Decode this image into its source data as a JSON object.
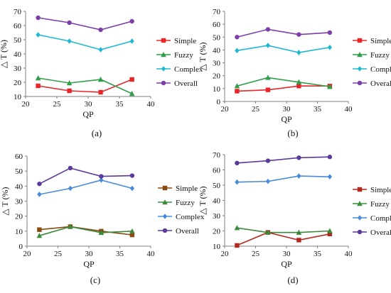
{
  "chart_data": [
    {
      "type": "line",
      "panel_label": "(a)",
      "xlabel": "QP",
      "ylabel": "△ T (%)",
      "x": [
        22,
        27,
        32,
        37
      ],
      "xlim": [
        20,
        40
      ],
      "xticks": [
        20,
        25,
        30,
        35,
        40
      ],
      "ylim": [
        10,
        70
      ],
      "yticks": [
        10,
        20,
        30,
        40,
        50,
        60,
        70
      ],
      "grid": false,
      "legend_position": "right",
      "series": [
        {
          "name": "Simple",
          "color": "#e8262a",
          "marker": "square",
          "values": [
            17.5,
            14,
            13,
            22
          ]
        },
        {
          "name": "Fuzzy",
          "color": "#2e9e4a",
          "marker": "triangle",
          "values": [
            23,
            19.5,
            22,
            12
          ]
        },
        {
          "name": "Complex",
          "color": "#1fb8d1",
          "marker": "diamond",
          "values": [
            53.5,
            49,
            43,
            49
          ]
        },
        {
          "name": "Overall",
          "color": "#7a3fa8",
          "marker": "circle",
          "values": [
            65.5,
            62,
            57,
            63
          ]
        }
      ]
    },
    {
      "type": "line",
      "panel_label": "(b)",
      "xlabel": "QP",
      "ylabel": "△ T (%)",
      "x": [
        22,
        27,
        32,
        37
      ],
      "xlim": [
        20,
        40
      ],
      "xticks": [
        20,
        25,
        30,
        35,
        40
      ],
      "ylim": [
        0,
        70
      ],
      "yticks": [
        0,
        10,
        20,
        30,
        40,
        50,
        60,
        70
      ],
      "grid": false,
      "legend_position": "right",
      "series": [
        {
          "name": "Simple",
          "color": "#e8262a",
          "marker": "square",
          "values": [
            8,
            9,
            12,
            12
          ]
        },
        {
          "name": "Fuzzy",
          "color": "#2e9e4a",
          "marker": "triangle",
          "values": [
            12,
            18.5,
            15,
            11.5
          ]
        },
        {
          "name": "Complex",
          "color": "#1fb8d1",
          "marker": "diamond",
          "values": [
            39.5,
            43.5,
            38,
            42
          ]
        },
        {
          "name": "Overall",
          "color": "#7a3fa8",
          "marker": "circle",
          "values": [
            50,
            56,
            52,
            53.5
          ]
        }
      ]
    },
    {
      "type": "line",
      "panel_label": "(c)",
      "xlabel": "QP",
      "ylabel": "△ T (%)",
      "x": [
        22,
        27,
        32,
        37
      ],
      "xlim": [
        20,
        40
      ],
      "xticks": [
        20,
        25,
        30,
        35,
        40
      ],
      "ylim": [
        0,
        60
      ],
      "yticks": [
        0,
        10,
        20,
        30,
        40,
        50,
        60
      ],
      "grid": false,
      "legend_position": "right",
      "series": [
        {
          "name": "Simple",
          "color": "#8a4a12",
          "marker": "square",
          "values": [
            11,
            13,
            10,
            7.5
          ]
        },
        {
          "name": "Fuzzy",
          "color": "#3a8a3a",
          "marker": "triangle",
          "values": [
            7,
            13,
            9,
            10
          ]
        },
        {
          "name": "Complex",
          "color": "#4a8ad8",
          "marker": "diamond",
          "values": [
            34.5,
            38.5,
            44,
            38.5
          ]
        },
        {
          "name": "Overall",
          "color": "#5a3a9a",
          "marker": "circle",
          "values": [
            41.5,
            52,
            46.5,
            47
          ]
        }
      ]
    },
    {
      "type": "line",
      "panel_label": "(d)",
      "xlabel": "QP",
      "ylabel": "△ T (%)",
      "x": [
        22,
        27,
        32,
        37
      ],
      "xlim": [
        20,
        40
      ],
      "xticks": [
        20,
        25,
        30,
        35,
        40
      ],
      "ylim": [
        10,
        70
      ],
      "yticks": [
        10,
        20,
        30,
        40,
        50,
        60,
        70
      ],
      "grid": false,
      "legend_position": "right",
      "series": [
        {
          "name": "Simple",
          "color": "#b4291e",
          "marker": "square",
          "values": [
            10.5,
            19,
            14,
            18
          ]
        },
        {
          "name": "Fuzzy",
          "color": "#3a8a3a",
          "marker": "triangle",
          "values": [
            22,
            19,
            19,
            20
          ]
        },
        {
          "name": "Complex",
          "color": "#4a8ad8",
          "marker": "diamond",
          "values": [
            52,
            52.5,
            56,
            55.5
          ]
        },
        {
          "name": "Overall",
          "color": "#5a3a9a",
          "marker": "circle",
          "values": [
            64.5,
            66,
            68,
            68.5
          ]
        }
      ]
    }
  ]
}
